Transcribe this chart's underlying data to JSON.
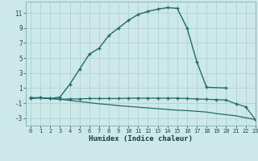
{
  "bg_color": "#cde8e8",
  "grid_color": "#aacfcf",
  "line_color": "#1e6b6b",
  "xlabel": "Humidex (Indice chaleur)",
  "xlim": [
    -0.5,
    23
  ],
  "ylim": [
    -4,
    12.5
  ],
  "yticks": [
    -3,
    -1,
    1,
    3,
    5,
    7,
    9,
    11
  ],
  "xticks": [
    0,
    1,
    2,
    3,
    4,
    5,
    6,
    7,
    8,
    9,
    10,
    11,
    12,
    13,
    14,
    15,
    16,
    17,
    18,
    19,
    20,
    21,
    22,
    23
  ],
  "curve1_x": [
    0,
    1,
    2,
    3,
    4,
    5,
    6,
    7,
    8,
    9,
    10,
    11,
    12,
    13,
    14,
    15,
    16,
    17,
    18,
    20
  ],
  "curve1_y": [
    -0.4,
    -0.3,
    -0.4,
    -0.2,
    1.5,
    3.5,
    5.5,
    6.3,
    8.0,
    9.0,
    10.0,
    10.8,
    11.2,
    11.5,
    11.7,
    11.6,
    9.0,
    4.5,
    1.1,
    1.0
  ],
  "curve2_x": [
    0,
    1,
    2,
    3,
    4,
    5,
    6,
    7,
    8,
    9,
    10,
    11,
    12,
    13,
    14,
    15,
    16,
    17,
    18,
    19,
    20,
    21,
    22,
    23
  ],
  "curve2_y": [
    -0.3,
    -0.3,
    -0.4,
    -0.5,
    -0.45,
    -0.45,
    -0.4,
    -0.4,
    -0.4,
    -0.4,
    -0.35,
    -0.35,
    -0.35,
    -0.35,
    -0.35,
    -0.35,
    -0.4,
    -0.45,
    -0.5,
    -0.55,
    -0.6,
    -1.1,
    -1.5,
    -3.2
  ],
  "curve3_x": [
    0,
    1,
    2,
    3,
    4,
    5,
    6,
    7,
    8,
    9,
    10,
    11,
    12,
    13,
    14,
    15,
    16,
    17,
    18,
    19,
    20,
    21,
    22,
    23
  ],
  "curve3_y": [
    -0.3,
    -0.3,
    -0.4,
    -0.5,
    -0.65,
    -0.8,
    -0.95,
    -1.1,
    -1.2,
    -1.35,
    -1.45,
    -1.55,
    -1.65,
    -1.75,
    -1.85,
    -1.95,
    -2.0,
    -2.1,
    -2.2,
    -2.4,
    -2.55,
    -2.7,
    -2.95,
    -3.2
  ]
}
